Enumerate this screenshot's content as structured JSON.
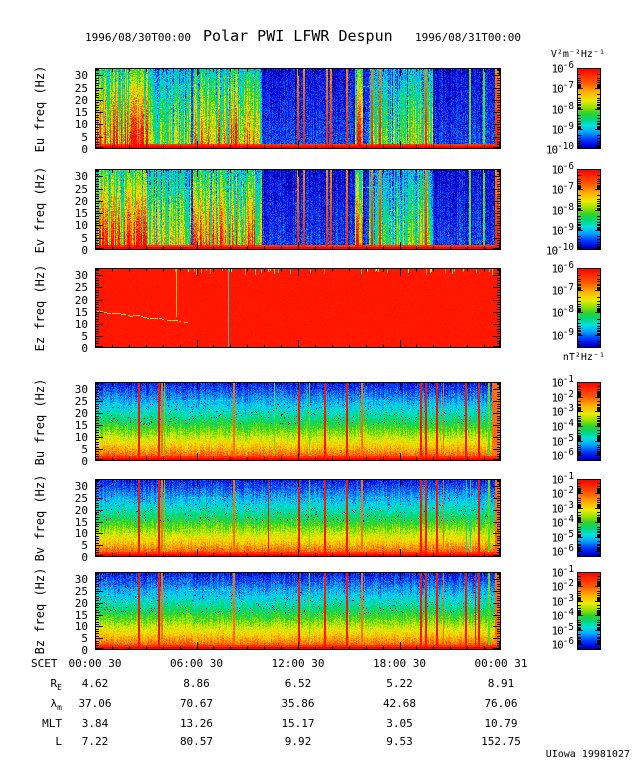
{
  "title": {
    "left_date": "1996/08/30T00:00",
    "main": "Polar PWI LFWR Despun",
    "right_date": "1996/08/31T00:00"
  },
  "units": {
    "electric": "V²m⁻²Hz⁻¹",
    "magnetic": "nT²Hz⁻¹"
  },
  "credit": "UIowa 19981027",
  "chart_data": {
    "type": "heatmap",
    "title": "Polar PWI LFWR Despun",
    "time_start": "1996/08/30T00:00",
    "time_end": "1996/08/31T00:00",
    "ymax_hz": 33,
    "yticks_hz": [
      30,
      25,
      20,
      15,
      10,
      5,
      0
    ],
    "xaxis": {
      "label": "SCET",
      "tick_labels": [
        "00:00 30",
        "06:00 30",
        "12:00 30",
        "18:00 30",
        "00:00 31"
      ],
      "hours_span": 24
    },
    "colormap_stops": [
      "#000064",
      "#0000d2",
      "#003cff",
      "#00a0ff",
      "#00e1e1",
      "#00d778",
      "#32d228",
      "#96e100",
      "#ebeb00",
      "#ffaf00",
      "#ff5f00",
      "#ff0000"
    ],
    "panels": [
      {
        "id": "eu",
        "ylabel": "Eu freq (Hz)",
        "style": "e",
        "seed": 11,
        "colorbar_exponents": [
          -6,
          -7,
          -8,
          -9,
          -10
        ],
        "colorbar_decades": 4,
        "regions": [
          [
            0.0,
            0.13,
            1.0
          ],
          [
            0.13,
            0.235,
            0.6
          ],
          [
            0.24,
            0.41,
            0.8
          ],
          [
            0.638,
            0.66,
            0.95
          ],
          [
            0.673,
            0.77,
            0.5
          ],
          [
            0.77,
            0.832,
            0.62
          ]
        ],
        "stripes": [
          [
            0.497,
            2,
            "hot"
          ],
          [
            0.512,
            2,
            "hot"
          ],
          [
            0.568,
            2,
            "hot"
          ],
          [
            0.578,
            2,
            "hot"
          ],
          [
            0.618,
            2,
            "hot"
          ],
          [
            0.68,
            2,
            "hot"
          ],
          [
            0.7,
            2,
            "hot"
          ],
          [
            0.814,
            2,
            "hot"
          ],
          [
            0.92,
            2,
            "g"
          ],
          [
            0.955,
            2,
            "g"
          ],
          [
            0.985,
            7,
            "hot"
          ]
        ],
        "hlines": [
          {
            "x0": 0.19,
            "x1": 0.36,
            "f": 25.5,
            "ends": true
          },
          {
            "x0": 0.64,
            "x1": 0.73,
            "f": 25.5,
            "ends": true
          }
        ]
      },
      {
        "id": "ev",
        "ylabel": "Ev freq (Hz)",
        "style": "e",
        "seed": 23,
        "colorbar_exponents": [
          -6,
          -7,
          -8,
          -9,
          -10
        ],
        "colorbar_decades": 4,
        "regions": [
          [
            0.0,
            0.13,
            1.0
          ],
          [
            0.13,
            0.235,
            0.65
          ],
          [
            0.24,
            0.41,
            0.82
          ],
          [
            0.638,
            0.66,
            0.95
          ],
          [
            0.673,
            0.77,
            0.52
          ],
          [
            0.77,
            0.832,
            0.6
          ]
        ],
        "stripes": [
          [
            0.497,
            2,
            "hot"
          ],
          [
            0.512,
            2,
            "hot"
          ],
          [
            0.568,
            2,
            "hot"
          ],
          [
            0.578,
            2,
            "hot"
          ],
          [
            0.618,
            2,
            "hot"
          ],
          [
            0.68,
            2,
            "hot"
          ],
          [
            0.7,
            2,
            "hot"
          ],
          [
            0.814,
            2,
            "hot"
          ],
          [
            0.92,
            2,
            "g"
          ],
          [
            0.955,
            2,
            "g"
          ],
          [
            0.985,
            7,
            "hot"
          ]
        ],
        "hlines": [
          {
            "x0": 0.19,
            "x1": 0.36,
            "f": 25.5,
            "ends": true
          },
          {
            "x0": 0.64,
            "x1": 0.73,
            "f": 25.5,
            "ends": true
          }
        ]
      },
      {
        "id": "ez",
        "ylabel": "Ez freq (Hz)",
        "style": "ez",
        "seed": 37,
        "colorbar_exponents": [
          -6,
          -7,
          -8,
          -9
        ],
        "colorbar_decades": 3.6,
        "trace": {
          "x0": 0.005,
          "x1": 0.225,
          "f0": 15.2,
          "f1": 10.8
        },
        "vlines": [
          {
            "x": 0.2,
            "y0": 0.0,
            "y1": 0.6,
            "color": "#ffd800"
          },
          {
            "x": 0.327,
            "y0": 0.0,
            "y1": 1.0,
            "color": "#00dcc8"
          }
        ],
        "top_dashes": 42
      },
      {
        "id": "bu",
        "ylabel": "Bu freq (Hz)",
        "style": "b",
        "seed": 51,
        "colorbar_exponents": [
          -1,
          -2,
          -3,
          -4,
          -5,
          -6
        ],
        "colorbar_decades": 5.4,
        "stripes": [
          [
            0.105,
            2,
            "r"
          ],
          [
            0.155,
            2,
            "r"
          ],
          [
            0.163,
            2,
            "o"
          ],
          [
            0.171,
            1,
            "g"
          ],
          [
            0.34,
            2,
            "o"
          ],
          [
            0.44,
            1,
            "g"
          ],
          [
            0.5,
            2,
            "r"
          ],
          [
            0.528,
            1,
            "g"
          ],
          [
            0.565,
            2,
            "r"
          ],
          [
            0.618,
            2,
            "r"
          ],
          [
            0.655,
            2,
            "o"
          ],
          [
            0.8,
            2,
            "r"
          ],
          [
            0.814,
            2,
            "r"
          ],
          [
            0.84,
            2,
            "r"
          ],
          [
            0.856,
            1,
            "o"
          ],
          [
            0.912,
            2,
            "r"
          ],
          [
            0.944,
            2,
            "r"
          ],
          [
            0.967,
            2,
            "g"
          ],
          [
            0.978,
            9,
            "o"
          ]
        ],
        "hlines": [
          {
            "x0": 0.2,
            "x1": 0.33,
            "f": 25.5
          },
          {
            "x0": 0.67,
            "x1": 0.72,
            "f": 25.5
          }
        ]
      },
      {
        "id": "bv",
        "ylabel": "Bv freq (Hz)",
        "style": "b",
        "seed": 63,
        "colorbar_exponents": [
          -1,
          -2,
          -3,
          -4,
          -5,
          -6
        ],
        "colorbar_decades": 5.4,
        "stripes": [
          [
            0.105,
            2,
            "r"
          ],
          [
            0.155,
            2,
            "r"
          ],
          [
            0.163,
            2,
            "o"
          ],
          [
            0.171,
            1,
            "g"
          ],
          [
            0.34,
            2,
            "o"
          ],
          [
            0.425,
            1,
            "r"
          ],
          [
            0.5,
            2,
            "r"
          ],
          [
            0.528,
            1,
            "g"
          ],
          [
            0.565,
            2,
            "r"
          ],
          [
            0.618,
            2,
            "r"
          ],
          [
            0.655,
            2,
            "o"
          ],
          [
            0.8,
            2,
            "r"
          ],
          [
            0.814,
            2,
            "r"
          ],
          [
            0.84,
            2,
            "r"
          ],
          [
            0.856,
            1,
            "o"
          ],
          [
            0.915,
            1,
            "c"
          ],
          [
            0.924,
            1,
            "c"
          ],
          [
            0.944,
            2,
            "r"
          ],
          [
            0.967,
            2,
            "g"
          ],
          [
            0.985,
            5,
            "o"
          ]
        ],
        "hlines": [
          {
            "x0": 0.2,
            "x1": 0.33,
            "f": 25.5
          },
          {
            "x0": 0.67,
            "x1": 0.72,
            "f": 25.5
          }
        ]
      },
      {
        "id": "bz",
        "ylabel": "Bz freq (Hz)",
        "style": "b",
        "seed": 77,
        "colorbar_exponents": [
          -1,
          -2,
          -3,
          -4,
          -5,
          -6
        ],
        "colorbar_decades": 5.4,
        "stripes": [
          [
            0.105,
            2,
            "r"
          ],
          [
            0.155,
            2,
            "r"
          ],
          [
            0.163,
            2,
            "o"
          ],
          [
            0.34,
            2,
            "o"
          ],
          [
            0.5,
            2,
            "r"
          ],
          [
            0.528,
            1,
            "g"
          ],
          [
            0.565,
            2,
            "r"
          ],
          [
            0.618,
            2,
            "r"
          ],
          [
            0.655,
            2,
            "o"
          ],
          [
            0.8,
            2,
            "r"
          ],
          [
            0.814,
            2,
            "r"
          ],
          [
            0.84,
            2,
            "r"
          ],
          [
            0.856,
            1,
            "o"
          ],
          [
            0.912,
            2,
            "r"
          ],
          [
            0.935,
            1,
            "r"
          ],
          [
            0.944,
            2,
            "r"
          ],
          [
            0.967,
            2,
            "g"
          ],
          [
            0.985,
            5,
            "o"
          ]
        ],
        "hlines": [
          {
            "x0": 0.2,
            "x1": 0.33,
            "f": 25.5
          }
        ]
      }
    ],
    "ephemeris": {
      "rows": [
        {
          "label": "R",
          "sub": "E",
          "values": [
            "4.62",
            "8.86",
            "6.52",
            "5.22",
            "8.91"
          ]
        },
        {
          "label": "λ",
          "sub": "m",
          "values": [
            "37.06",
            "70.67",
            "35.86",
            "42.68",
            "76.06"
          ]
        },
        {
          "label": "MLT",
          "sub": "",
          "values": [
            "3.84",
            "13.26",
            "15.17",
            "3.05",
            "10.79"
          ]
        },
        {
          "label": "L",
          "sub": "",
          "values": [
            "7.22",
            "80.57",
            "9.92",
            "9.53",
            "152.75"
          ]
        }
      ]
    }
  }
}
